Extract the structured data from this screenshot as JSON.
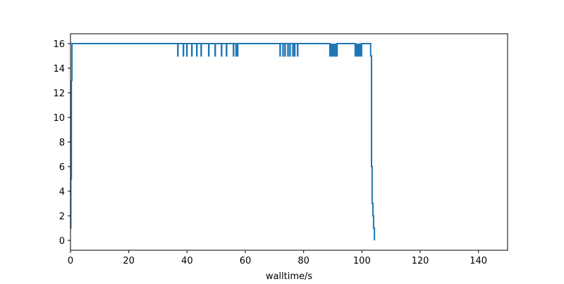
{
  "chart_data": {
    "type": "line",
    "step": "post",
    "title": "",
    "xlabel": "walltime/s",
    "ylabel": "",
    "xlim": [
      0,
      150
    ],
    "ylim": [
      -0.8,
      16.8
    ],
    "xticks": [
      0,
      20,
      40,
      60,
      80,
      100,
      120,
      140
    ],
    "yticks": [
      0,
      2,
      4,
      6,
      8,
      10,
      12,
      14,
      16
    ],
    "grid": false,
    "color": "#1f77b4",
    "series": [
      {
        "x": [
          0,
          0.1,
          0.3,
          0.5,
          0.7,
          36.8,
          36.9,
          38.7,
          38.8,
          39.9,
          40.0,
          41.6,
          41.7,
          43.3,
          43.4,
          44.8,
          44.9,
          47.4,
          47.5,
          49.6,
          49.7,
          51.8,
          51.9,
          53.5,
          53.6,
          55.9,
          56.0,
          56.8,
          57.4,
          71.9,
          72.0,
          72.9,
          73.0,
          73.6,
          73.7,
          74.6,
          74.7,
          75.3,
          75.4,
          76.3,
          76.4,
          76.9,
          77.0,
          77.9,
          78.0,
          89.0,
          91.5,
          97.7,
          99.9,
          103.0,
          103.3,
          103.5,
          103.8,
          104.0,
          104.3
        ],
        "y": [
          1,
          5,
          13,
          16,
          16,
          15,
          16,
          15,
          16,
          15,
          16,
          15,
          16,
          15,
          16,
          15,
          16,
          15,
          16,
          15,
          16,
          15,
          16,
          15,
          16,
          15,
          16,
          15,
          16,
          15,
          16,
          15,
          16,
          15,
          16,
          15,
          16,
          15,
          16,
          15,
          16,
          15,
          16,
          15,
          16,
          15,
          16,
          15,
          16,
          15,
          6,
          3,
          2,
          1,
          0
        ]
      }
    ],
    "bands": [
      [
        56.8,
        57.4
      ],
      [
        89.0,
        91.5
      ],
      [
        97.7,
        99.9
      ]
    ]
  }
}
